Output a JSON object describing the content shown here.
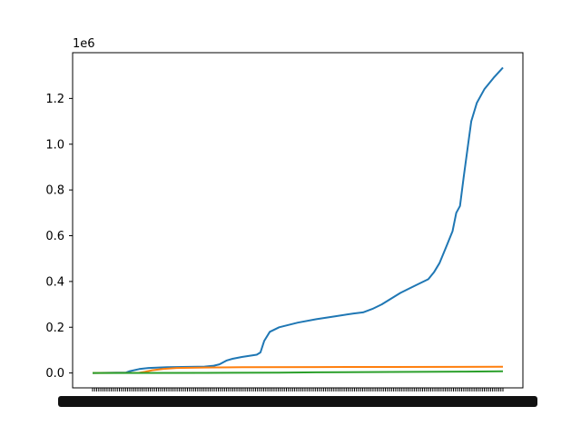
{
  "chart_data": {
    "type": "line",
    "title": "",
    "xlabel": "",
    "ylabel": "",
    "y_offset_text": "1e6",
    "ylim": [
      -65000,
      1400000
    ],
    "yticks": [
      0.0,
      0.2,
      0.4,
      0.6,
      0.8,
      1.0,
      1.2
    ],
    "ytick_labels": [
      "0.0",
      "0.2",
      "0.4",
      "0.6",
      "0.8",
      "1.0",
      "1.2"
    ],
    "ytick_scale": 1000000,
    "x_count": 200,
    "x_tick_labels_note": "dense overlapping date tick labels (illegible)",
    "grid": false,
    "legend": "none",
    "colors": [
      "#1f77b4",
      "#ff7f0e",
      "#2ca02c"
    ],
    "series": [
      {
        "color": "#1f77b4",
        "points": [
          [
            0,
            0
          ],
          [
            18,
            2000
          ],
          [
            20,
            8000
          ],
          [
            25,
            17000
          ],
          [
            30,
            22000
          ],
          [
            40,
            25000
          ],
          [
            60,
            28000
          ],
          [
            65,
            32000
          ],
          [
            68,
            38000
          ],
          [
            72,
            55000
          ],
          [
            75,
            62000
          ],
          [
            80,
            70000
          ],
          [
            88,
            80000
          ],
          [
            90,
            90000
          ],
          [
            92,
            140000
          ],
          [
            95,
            180000
          ],
          [
            100,
            200000
          ],
          [
            110,
            220000
          ],
          [
            120,
            235000
          ],
          [
            130,
            248000
          ],
          [
            140,
            260000
          ],
          [
            145,
            265000
          ],
          [
            150,
            280000
          ],
          [
            155,
            300000
          ],
          [
            165,
            350000
          ],
          [
            170,
            370000
          ],
          [
            175,
            390000
          ],
          [
            180,
            410000
          ],
          [
            183,
            440000
          ],
          [
            186,
            480000
          ],
          [
            190,
            560000
          ],
          [
            193,
            620000
          ],
          [
            195,
            700000
          ],
          [
            197,
            730000
          ],
          [
            199,
            860000
          ],
          [
            201,
            980000
          ],
          [
            203,
            1100000
          ],
          [
            206,
            1180000
          ],
          [
            210,
            1240000
          ],
          [
            215,
            1290000
          ],
          [
            220,
            1335000
          ]
        ]
      },
      {
        "color": "#ff7f0e",
        "points": [
          [
            0,
            0
          ],
          [
            25,
            1000
          ],
          [
            28,
            5000
          ],
          [
            32,
            12000
          ],
          [
            38,
            18000
          ],
          [
            45,
            22000
          ],
          [
            60,
            24000
          ],
          [
            80,
            25000
          ],
          [
            120,
            26000
          ],
          [
            160,
            26500
          ],
          [
            220,
            27000
          ]
        ]
      },
      {
        "color": "#2ca02c",
        "points": [
          [
            0,
            0
          ],
          [
            60,
            500
          ],
          [
            100,
            1500
          ],
          [
            120,
            3000
          ],
          [
            160,
            4500
          ],
          [
            200,
            6000
          ],
          [
            220,
            7500
          ]
        ]
      }
    ]
  }
}
